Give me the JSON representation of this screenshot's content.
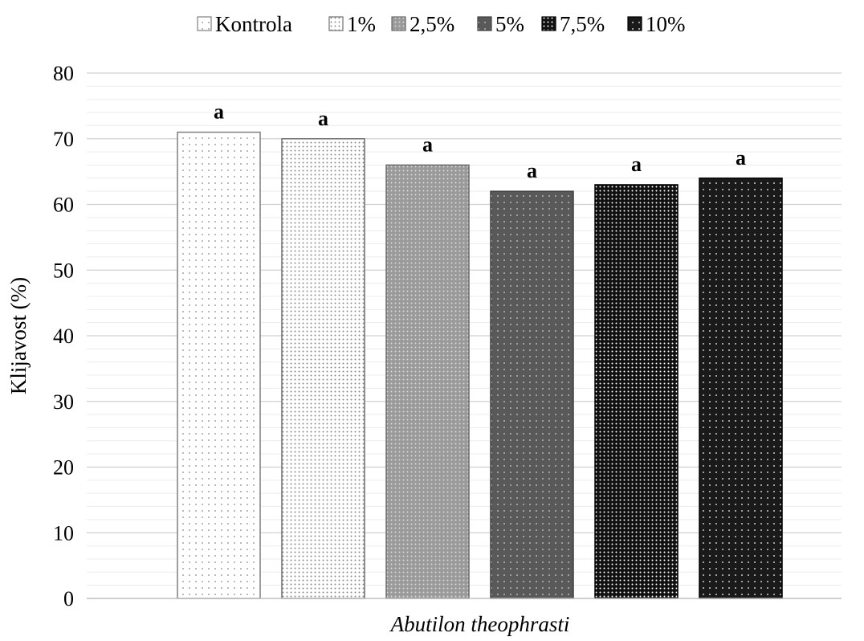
{
  "chart_data": {
    "type": "bar",
    "categories": [
      "Abutilon theophrasti"
    ],
    "series": [
      {
        "name": "Kontrola",
        "values": [
          71
        ],
        "label": "a",
        "fill": "#ffffff",
        "dot": "#8a8a8a",
        "stroke": "#7f7f7f"
      },
      {
        "name": "1%",
        "values": [
          70
        ],
        "label": "a",
        "fill": "#ffffff",
        "dot": "#8a8a8a",
        "stroke": "#6e6e6e",
        "dense": true
      },
      {
        "name": "2,5%",
        "values": [
          66
        ],
        "label": "a",
        "fill": "#9a9a9a",
        "dot": "#d8d8d8",
        "stroke": "#6a6a6a",
        "dense": true
      },
      {
        "name": "5%",
        "values": [
          62
        ],
        "label": "a",
        "fill": "#595959",
        "dot": "#d0d0d0",
        "stroke": "#404040"
      },
      {
        "name": "7,5%",
        "values": [
          63
        ],
        "label": "a",
        "fill": "#111111",
        "dot": "#ffffff",
        "stroke": "#000000",
        "dense": true
      },
      {
        "name": "10%",
        "values": [
          64
        ],
        "label": "a",
        "fill": "#1a1a1a",
        "dot": "#ffffff",
        "stroke": "#000000"
      }
    ],
    "ylabel": "Klijavost (%)",
    "xlabel": "",
    "ylim": [
      0,
      80
    ],
    "yticks": [
      0,
      10,
      20,
      30,
      40,
      50,
      60,
      70,
      80
    ],
    "grid": true,
    "legend": "top"
  }
}
